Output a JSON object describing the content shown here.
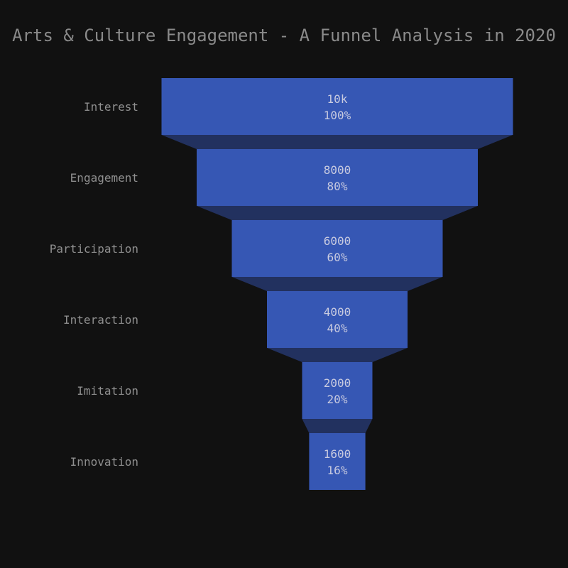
{
  "title": "Arts & Culture Engagement - A Funnel Analysis in 2020",
  "colors": {
    "background": "#111111",
    "bar": "#3657b4",
    "connector": "#22315f",
    "stage_text": "#8f8f8f",
    "value_text": "#c9cbe0",
    "title_text": "#8a8a8a"
  },
  "chart_data": {
    "type": "funnel",
    "title": "Arts & Culture Engagement - A Funnel Analysis in 2020",
    "stages": [
      "Interest",
      "Engagement",
      "Participation",
      "Interaction",
      "Imitation",
      "Innovation"
    ],
    "values": [
      10000,
      8000,
      6000,
      4000,
      2000,
      1600
    ],
    "value_labels": [
      "10k",
      "8000",
      "6000",
      "4000",
      "2000",
      "1600"
    ],
    "percent_labels": [
      "100%",
      "80%",
      "60%",
      "40%",
      "20%",
      "16%"
    ]
  }
}
